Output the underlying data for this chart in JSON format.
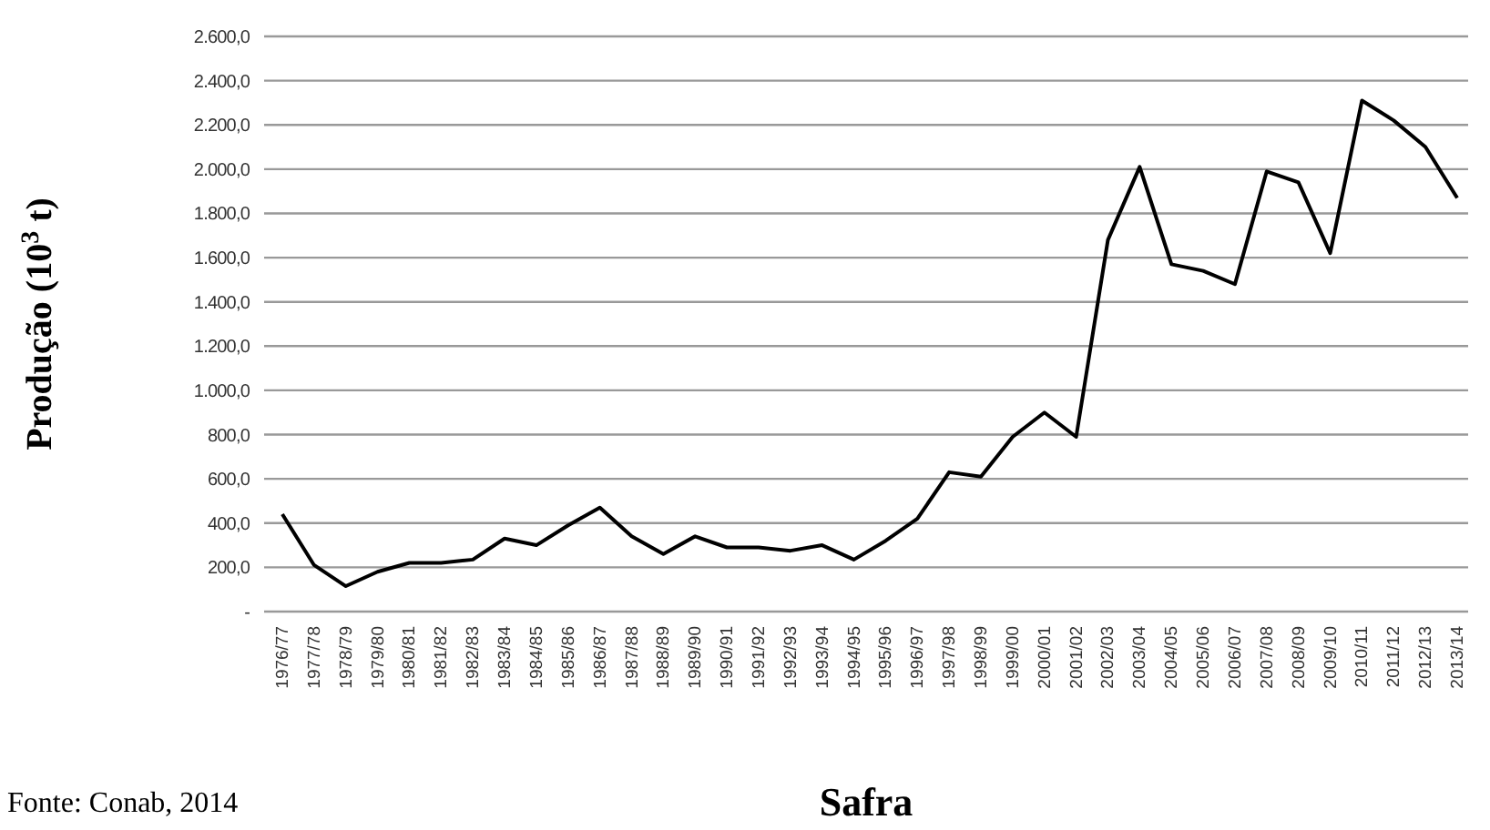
{
  "chart_data": {
    "type": "line",
    "xlabel": "Safra",
    "ylabel": "Produção (10$^{3}$ t)",
    "categories": [
      "1976/77",
      "1977/78",
      "1978/79",
      "1979/80",
      "1980/81",
      "1981/82",
      "1982/83",
      "1983/84",
      "1984/85",
      "1985/86",
      "1986/87",
      "1987/88",
      "1988/89",
      "1989/90",
      "1990/91",
      "1991/92",
      "1992/93",
      "1993/94",
      "1994/95",
      "1995/96",
      "1996/97",
      "1997/98",
      "1998/99",
      "1999/00",
      "2000/01",
      "2001/02",
      "2002/03",
      "2003/04",
      "2004/05",
      "2005/06",
      "2006/07",
      "2007/08",
      "2008/09",
      "2009/10",
      "2010/11",
      "2011/12",
      "2012/13",
      "2013/14"
    ],
    "series": [
      {
        "color": "#000000",
        "values": [
          440,
          210,
          115,
          180,
          220,
          220,
          235,
          330,
          300,
          390,
          470,
          340,
          260,
          340,
          290,
          290,
          275,
          300,
          235,
          320,
          420,
          630,
          610,
          790,
          900,
          790,
          1680,
          2010,
          1570,
          1540,
          1480,
          1990,
          1940,
          1620,
          2310,
          2220,
          2100,
          1870
        ]
      }
    ],
    "ylim": [
      0,
      2600
    ],
    "yticks": [
      {
        "value": 0,
        "label": "-"
      },
      {
        "value": 200,
        "label": "200,0"
      },
      {
        "value": 400,
        "label": "400,0"
      },
      {
        "value": 600,
        "label": "600,0"
      },
      {
        "value": 800,
        "label": "800,0"
      },
      {
        "value": 1000,
        "label": "1.000,0"
      },
      {
        "value": 1200,
        "label": "1.200,0"
      },
      {
        "value": 1400,
        "label": "1.400,0"
      },
      {
        "value": 1600,
        "label": "1.600,0"
      },
      {
        "value": 1800,
        "label": "1.800,0"
      },
      {
        "value": 2000,
        "label": "2.000,0"
      },
      {
        "value": 2200,
        "label": "2.200,0"
      },
      {
        "value": 2400,
        "label": "2.400,0"
      },
      {
        "value": 2600,
        "label": "2.600,0"
      }
    ],
    "grid": "y",
    "marker": "none",
    "line_style": "solid",
    "annotations": [
      "Fonte: Conab, 2014"
    ]
  }
}
